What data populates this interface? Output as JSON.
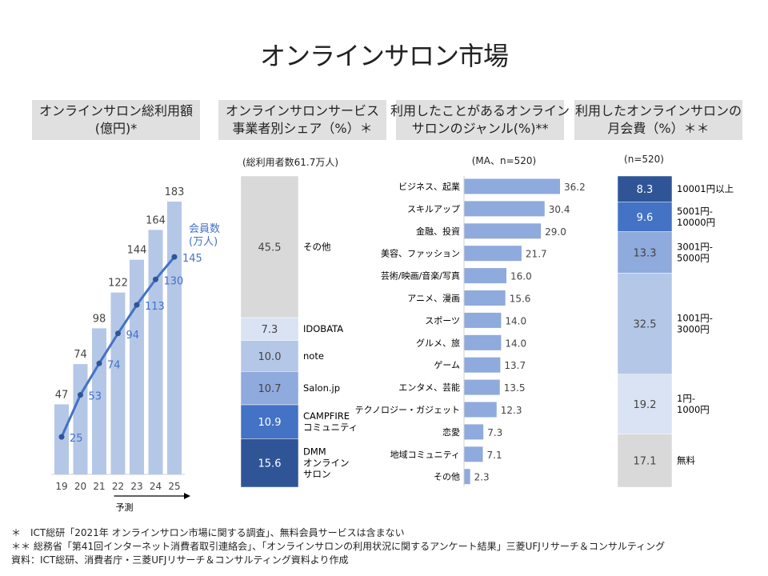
{
  "title": "オンラインサロン市場",
  "headers": [
    "オンラインサロン総利用額\n(億円)*",
    "オンラインサロンサービス\n事業者別シェア（%）＊",
    "利用したことがあるオンライン\nサロンのジャンル(%)**",
    "利用したオンラインサロンの\n月会費（%）＊＊"
  ],
  "footnotes": [
    "＊　ICT総研「2021年 オンラインサロン市場に関する調査」、無料会員サービスは含まない",
    "＊＊ 総務省「第41回インターネット消費者取引連絡会」、「オンラインサロンの利用状況に関するアンケート結果」三菱UFJリサーチ＆コンサルティング",
    "資料：ICT総研、消費者庁・三菱UFJリサーチ＆コンサルティング資料より作成"
  ],
  "colors": {
    "bar": "#b4c7e7",
    "line": "#4472c4",
    "genre_bar": "#8faadc",
    "stack": [
      "#2f5597",
      "#4472c4",
      "#8faadc",
      "#b4c7e7",
      "#dae3f3",
      "#d9d9d9"
    ]
  },
  "chart_data": [
    {
      "type": "bar",
      "categories": [
        "19",
        "20",
        "21",
        "22",
        "23",
        "24",
        "25"
      ],
      "values": [
        47,
        74,
        98,
        122,
        144,
        164,
        183
      ],
      "line_series": {
        "name": "会員数\n(万人)",
        "values": [
          25,
          53,
          74,
          94,
          113,
          130,
          145
        ]
      },
      "annotation": "予測",
      "forecast_from": "22"
    },
    {
      "type": "stacked-bar",
      "note": "(総利用者数61.7万人)",
      "categories": [
        "DMM\nオンライン\nサロン",
        "CAMPFIRE\nコミュニティ",
        "Salon.jp",
        "note",
        "IDOBATA",
        "その他"
      ],
      "values": [
        15.6,
        10.9,
        10.7,
        10.0,
        7.3,
        45.5
      ]
    },
    {
      "type": "bar-horizontal",
      "note": "(MA、n=520)",
      "categories": [
        "ビジネス、起業",
        "スキルアップ",
        "金融、投資",
        "美容、ファッション",
        "芸術/映画/音楽/写真",
        "アニメ、漫画",
        "スポーツ",
        "グルメ、旅",
        "ゲーム",
        "エンタメ、芸能",
        "テクノロジー・ガジェット",
        "恋愛",
        "地域コミュニティ",
        "その他"
      ],
      "values": [
        36.2,
        30.4,
        29.0,
        21.7,
        16.0,
        15.6,
        14.0,
        14.0,
        13.7,
        13.5,
        12.3,
        7.3,
        7.1,
        2.3
      ]
    },
    {
      "type": "stacked-bar",
      "note": "(n=520)",
      "categories": [
        "10001円以上",
        "5001円-\n10000円",
        "3001円-\n5000円",
        "1001円-\n3000円",
        "1円-\n1000円",
        "無料"
      ],
      "values": [
        8.3,
        9.6,
        13.3,
        32.5,
        19.2,
        17.1
      ]
    }
  ]
}
